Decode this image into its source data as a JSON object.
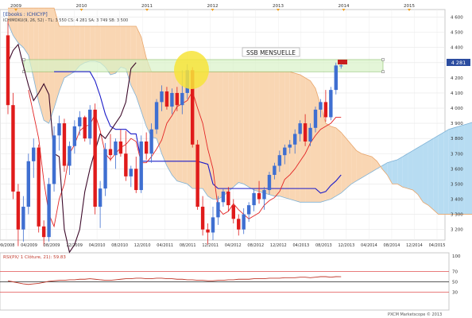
{
  "header": {
    "ticker": "[Ebooks : ICHICYP]",
    "params": "ICHIMOKU(9, 26, 52) - TL: 3 550  CS: 4 281  SA: 3 749  SB: 3 500"
  },
  "annotation": {
    "label": "SSB MENSUELLE"
  },
  "indicator": {
    "label": "RSI(PX/ 1 Clôture, 21): 59.83"
  },
  "footer": {
    "copyright": "PXCM Marketscope © 2013"
  },
  "price_label": "4 281",
  "colors": {
    "kumo_bull": "#b7dcf2",
    "kumo_bear": "#f9d6b3",
    "bull_candle": "#3f6fd1",
    "bear_candle": "#e01b1b",
    "tenkan": "#e32626",
    "kijun": "#1c1cc9",
    "chikou": "#3d0a2a",
    "band_fill": "#d8f2c8",
    "highlight": "#f7e43a"
  },
  "chart_data": {
    "type": "candlestick",
    "title": "",
    "x_ticks_bottom": [
      "09/2008",
      "04/2009",
      "08/2009",
      "12/2009",
      "04/2010",
      "08/2010",
      "12/2010",
      "04/2011",
      "08/2011",
      "12/2011",
      "04/2012",
      "08/2012",
      "12/2012",
      "04/2013",
      "08/2013",
      "12/2013",
      "04/2014",
      "08/2014",
      "12/2014",
      "04/2015"
    ],
    "x_ticks_top": [
      "2009",
      "2010",
      "2011",
      "2012",
      "2013",
      "2014",
      "2015"
    ],
    "y_ticks": [
      3200,
      3300,
      3400,
      3500,
      3600,
      3700,
      3800,
      3900,
      4000,
      4100,
      4200,
      4300,
      4400,
      4500,
      4600
    ],
    "ylim": [
      3130,
      4650
    ],
    "last_price": 4281,
    "candles": [
      {
        "o": 4480,
        "h": 4590,
        "l": 3960,
        "c": 4020
      },
      {
        "o": 4020,
        "h": 4100,
        "l": 3400,
        "c": 3450
      },
      {
        "o": 3450,
        "h": 3500,
        "l": 3090,
        "c": 3200
      },
      {
        "o": 3200,
        "h": 3420,
        "l": 3120,
        "c": 3350
      },
      {
        "o": 3350,
        "h": 3700,
        "l": 3300,
        "c": 3650
      },
      {
        "o": 3650,
        "h": 3800,
        "l": 3540,
        "c": 3740
      },
      {
        "o": 3740,
        "h": 3760,
        "l": 3180,
        "c": 3220
      },
      {
        "o": 3220,
        "h": 3260,
        "l": 3090,
        "c": 3150
      },
      {
        "o": 3150,
        "h": 3540,
        "l": 3120,
        "c": 3500
      },
      {
        "o": 3500,
        "h": 3880,
        "l": 3450,
        "c": 3820
      },
      {
        "o": 3820,
        "h": 3950,
        "l": 3720,
        "c": 3900
      },
      {
        "o": 3900,
        "h": 3930,
        "l": 3580,
        "c": 3620
      },
      {
        "o": 3620,
        "h": 3780,
        "l": 3560,
        "c": 3750
      },
      {
        "o": 3750,
        "h": 3920,
        "l": 3700,
        "c": 3880
      },
      {
        "o": 3880,
        "h": 3980,
        "l": 3820,
        "c": 3940
      },
      {
        "o": 3940,
        "h": 3950,
        "l": 3780,
        "c": 3800
      },
      {
        "o": 3800,
        "h": 4020,
        "l": 3760,
        "c": 3990
      },
      {
        "o": 3990,
        "h": 4030,
        "l": 3300,
        "c": 3350
      },
      {
        "o": 3350,
        "h": 3520,
        "l": 3210,
        "c": 3470
      },
      {
        "o": 3470,
        "h": 3770,
        "l": 3420,
        "c": 3730
      },
      {
        "o": 3730,
        "h": 3830,
        "l": 3650,
        "c": 3690
      },
      {
        "o": 3690,
        "h": 3800,
        "l": 3600,
        "c": 3780
      },
      {
        "o": 3780,
        "h": 3860,
        "l": 3680,
        "c": 3700
      },
      {
        "o": 3700,
        "h": 3850,
        "l": 3520,
        "c": 3550
      },
      {
        "o": 3550,
        "h": 3620,
        "l": 3480,
        "c": 3600
      },
      {
        "o": 3600,
        "h": 3680,
        "l": 3440,
        "c": 3460
      },
      {
        "o": 3460,
        "h": 3820,
        "l": 3440,
        "c": 3780
      },
      {
        "o": 3780,
        "h": 3840,
        "l": 3660,
        "c": 3700
      },
      {
        "o": 3700,
        "h": 3900,
        "l": 3640,
        "c": 3860
      },
      {
        "o": 3860,
        "h": 4060,
        "l": 3830,
        "c": 4040
      },
      {
        "o": 4040,
        "h": 4150,
        "l": 3980,
        "c": 4110
      },
      {
        "o": 4110,
        "h": 4140,
        "l": 3990,
        "c": 4010
      },
      {
        "o": 4010,
        "h": 4130,
        "l": 3960,
        "c": 4100
      },
      {
        "o": 4100,
        "h": 4140,
        "l": 3980,
        "c": 4020
      },
      {
        "o": 4020,
        "h": 4250,
        "l": 3960,
        "c": 4100
      },
      {
        "o": 4100,
        "h": 4290,
        "l": 4060,
        "c": 4250
      },
      {
        "o": 4250,
        "h": 4270,
        "l": 3740,
        "c": 3760
      },
      {
        "o": 3760,
        "h": 3790,
        "l": 3330,
        "c": 3350
      },
      {
        "o": 3350,
        "h": 3420,
        "l": 3160,
        "c": 3200
      },
      {
        "o": 3200,
        "h": 3240,
        "l": 3100,
        "c": 3180
      },
      {
        "o": 3180,
        "h": 3350,
        "l": 3130,
        "c": 3280
      },
      {
        "o": 3280,
        "h": 3420,
        "l": 3230,
        "c": 3380
      },
      {
        "o": 3380,
        "h": 3470,
        "l": 3350,
        "c": 3450
      },
      {
        "o": 3450,
        "h": 3480,
        "l": 3320,
        "c": 3360
      },
      {
        "o": 3360,
        "h": 3400,
        "l": 3240,
        "c": 3270
      },
      {
        "o": 3270,
        "h": 3300,
        "l": 3160,
        "c": 3200
      },
      {
        "o": 3200,
        "h": 3340,
        "l": 3170,
        "c": 3300
      },
      {
        "o": 3300,
        "h": 3380,
        "l": 3250,
        "c": 3360
      },
      {
        "o": 3360,
        "h": 3470,
        "l": 3320,
        "c": 3440
      },
      {
        "o": 3440,
        "h": 3520,
        "l": 3370,
        "c": 3400
      },
      {
        "o": 3400,
        "h": 3480,
        "l": 3330,
        "c": 3460
      },
      {
        "o": 3460,
        "h": 3580,
        "l": 3430,
        "c": 3560
      },
      {
        "o": 3560,
        "h": 3640,
        "l": 3530,
        "c": 3620
      },
      {
        "o": 3620,
        "h": 3720,
        "l": 3580,
        "c": 3690
      },
      {
        "o": 3690,
        "h": 3760,
        "l": 3630,
        "c": 3740
      },
      {
        "o": 3740,
        "h": 3790,
        "l": 3700,
        "c": 3760
      },
      {
        "o": 3760,
        "h": 3860,
        "l": 3700,
        "c": 3830
      },
      {
        "o": 3830,
        "h": 3920,
        "l": 3780,
        "c": 3900
      },
      {
        "o": 3900,
        "h": 3960,
        "l": 3750,
        "c": 3780
      },
      {
        "o": 3780,
        "h": 3900,
        "l": 3750,
        "c": 3870
      },
      {
        "o": 3870,
        "h": 4010,
        "l": 3840,
        "c": 3990
      },
      {
        "o": 3990,
        "h": 4060,
        "l": 3940,
        "c": 4040
      },
      {
        "o": 4040,
        "h": 4120,
        "l": 3910,
        "c": 3940
      },
      {
        "o": 3940,
        "h": 4140,
        "l": 3920,
        "c": 4120
      },
      {
        "o": 4120,
        "h": 4300,
        "l": 4090,
        "c": 4281
      },
      {
        "o": 4281,
        "h": 4300,
        "l": 4260,
        "c": 4281
      }
    ],
    "tenkan": [
      null,
      null,
      null,
      null,
      4120,
      3960,
      3800,
      3520,
      3300,
      3220,
      3400,
      3500,
      3700,
      3760,
      3850,
      3880,
      3890,
      3960,
      3850,
      3700,
      3660,
      3700,
      3740,
      3760,
      3800,
      3780,
      3640,
      3640,
      3680,
      3730,
      3790,
      3900,
      3950,
      4010,
      4030,
      4050,
      4110,
      4000,
      3900,
      3730,
      3600,
      3340,
      3300,
      3320,
      3370,
      3330,
      3300,
      3270,
      3290,
      3310,
      3360,
      3390,
      3410,
      3450,
      3530,
      3560,
      3600,
      3650,
      3700,
      3770,
      3820,
      3860,
      3880,
      3900,
      3940,
      3940
    ],
    "kijun": [
      null,
      null,
      null,
      null,
      null,
      null,
      null,
      null,
      null,
      4240,
      4240,
      4240,
      4240,
      4240,
      4240,
      4240,
      4240,
      4180,
      4080,
      3960,
      3880,
      3860,
      3860,
      3860,
      3830,
      3830,
      3650,
      3650,
      3650,
      3650,
      3650,
      3650,
      3650,
      3650,
      3650,
      3650,
      3650,
      3650,
      3640,
      3630,
      3500,
      3470,
      3470,
      3470,
      3470,
      3470,
      3470,
      3470,
      3470,
      3470,
      3470,
      3470,
      3470,
      3470,
      3470,
      3470,
      3470,
      3470,
      3470,
      3470,
      3470,
      3440,
      3450,
      3490,
      3520,
      3560
    ],
    "chikou": [
      4300,
      4380,
      4420,
      4280,
      4150,
      4050,
      4100,
      4160,
      4090,
      3700,
      3680,
      3200,
      3050,
      3100,
      3200,
      3450,
      3600,
      3720,
      3830,
      3800,
      3850,
      3900,
      3950,
      4040,
      4260,
      4300
    ],
    "senkou_a": [
      4560,
      4480,
      4430,
      4400,
      4350,
      4200,
      4040,
      3920,
      3900,
      4000,
      4110,
      4200,
      4220,
      4240,
      4280,
      4300,
      4310,
      4310,
      4300,
      4270,
      4220,
      4230,
      4270,
      4260,
      4150,
      4080,
      3980,
      3880,
      3810,
      3800,
      3700,
      3620,
      3560,
      3520,
      3510,
      3500,
      3470,
      3470,
      3470,
      3420,
      3400,
      3400,
      3420,
      3450,
      3480,
      3510,
      3500,
      3480,
      3460,
      3450,
      3440,
      3430,
      3420,
      3420,
      3410,
      3400,
      3390,
      3380,
      3380,
      3380,
      3380,
      3380,
      3390,
      3400,
      3420,
      3440,
      3470,
      3500,
      3520,
      3540,
      3560,
      3580,
      3600,
      3620,
      3640,
      3650,
      3660,
      3680,
      3700,
      3720,
      3740,
      3760,
      3780,
      3800,
      3820,
      3840,
      3860,
      3870,
      3880,
      3890,
      3900,
      3910,
      3920,
      3930,
      3940,
      3950,
      3960,
      3970,
      3980,
      3990,
      4000
    ],
    "senkou_b": [
      4660,
      4660,
      4660,
      4660,
      4660,
      4660,
      4660,
      4660,
      4660,
      4660,
      4540,
      4540,
      4540,
      4540,
      4540,
      4540,
      4540,
      4540,
      4540,
      4540,
      4540,
      4540,
      4540,
      4540,
      4540,
      4540,
      4470,
      4330,
      4240,
      4240,
      4240,
      4240,
      4240,
      4240,
      4240,
      4240,
      4240,
      4240,
      4240,
      4240,
      4240,
      4240,
      4240,
      4240,
      4240,
      4240,
      4240,
      4240,
      4240,
      4240,
      4240,
      4240,
      4240,
      4240,
      4240,
      4240,
      4230,
      4220,
      4200,
      4180,
      4130,
      4020,
      3900,
      3880,
      3870,
      3840,
      3800,
      3760,
      3720,
      3700,
      3690,
      3680,
      3650,
      3600,
      3560,
      3500,
      3500,
      3480,
      3470,
      3460,
      3430,
      3380,
      3360,
      3330,
      3300,
      3300,
      3300,
      3300,
      3300,
      3300,
      3300,
      3300,
      3400,
      3450,
      3480,
      3500,
      3520,
      3540,
      3560,
      3580,
      3600
    ],
    "ssb_band": [
      4240,
      4320
    ],
    "rsi": {
      "ylim": [
        0,
        100
      ],
      "levels": [
        30,
        50,
        70
      ],
      "y_ticks": [
        100,
        70,
        50,
        30
      ],
      "last": 59.83,
      "values": [
        52,
        50,
        48,
        46,
        45,
        46,
        47,
        49,
        51,
        52,
        53,
        53,
        54,
        54,
        55,
        55,
        56,
        55,
        54,
        53,
        53,
        54,
        55,
        56,
        56,
        57,
        57,
        56,
        56,
        57,
        57,
        56,
        56,
        55,
        55,
        54,
        54,
        53,
        53,
        52,
        52,
        53,
        53,
        54,
        54,
        55,
        55,
        55,
        56,
        56,
        56,
        57,
        57,
        57,
        58,
        58,
        58,
        59,
        59,
        58,
        59,
        60,
        60,
        59,
        60,
        59.83
      ]
    }
  }
}
